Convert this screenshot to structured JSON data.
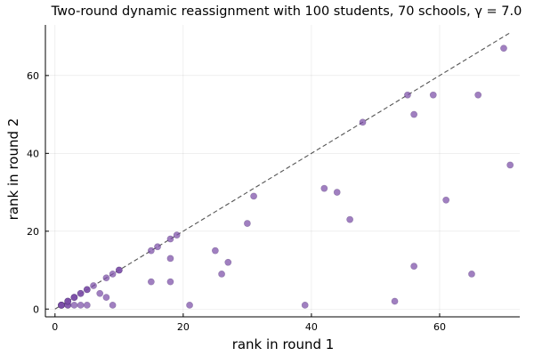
{
  "chart_data": {
    "type": "scatter",
    "title": "Two-round dynamic reassignment with 100 students, 70 schools, γ = 7.0",
    "xlabel": "rank in round 1",
    "ylabel": "rank in round 2",
    "xlim": [
      -1.5,
      72.5
    ],
    "ylim": [
      -2,
      73
    ],
    "xticks": [
      0,
      20,
      40,
      60
    ],
    "yticks": [
      0,
      20,
      40,
      60
    ],
    "xtick_labels": [
      "0",
      "20",
      "40",
      "60"
    ],
    "ytick_labels": [
      "0",
      "20",
      "40",
      "60"
    ],
    "grid": true,
    "legend": "none",
    "reference_line": {
      "style": "dashed",
      "from": [
        0,
        0
      ],
      "to": [
        71,
        71
      ]
    },
    "marker_color": "#7b4ea8",
    "points": [
      {
        "x": 1,
        "y": 1
      },
      {
        "x": 1,
        "y": 1
      },
      {
        "x": 1,
        "y": 1
      },
      {
        "x": 1,
        "y": 1
      },
      {
        "x": 1,
        "y": 1
      },
      {
        "x": 2,
        "y": 1
      },
      {
        "x": 2,
        "y": 1
      },
      {
        "x": 2,
        "y": 2
      },
      {
        "x": 2,
        "y": 2
      },
      {
        "x": 2,
        "y": 2
      },
      {
        "x": 3,
        "y": 1
      },
      {
        "x": 3,
        "y": 3
      },
      {
        "x": 3,
        "y": 3
      },
      {
        "x": 3,
        "y": 3
      },
      {
        "x": 4,
        "y": 1
      },
      {
        "x": 4,
        "y": 4
      },
      {
        "x": 4,
        "y": 4
      },
      {
        "x": 5,
        "y": 1
      },
      {
        "x": 5,
        "y": 5
      },
      {
        "x": 5,
        "y": 5
      },
      {
        "x": 6,
        "y": 6
      },
      {
        "x": 7,
        "y": 4
      },
      {
        "x": 8,
        "y": 3
      },
      {
        "x": 8,
        "y": 8
      },
      {
        "x": 9,
        "y": 1
      },
      {
        "x": 9,
        "y": 9
      },
      {
        "x": 10,
        "y": 10
      },
      {
        "x": 10,
        "y": 10
      },
      {
        "x": 15,
        "y": 7
      },
      {
        "x": 15,
        "y": 15
      },
      {
        "x": 16,
        "y": 16
      },
      {
        "x": 18,
        "y": 7
      },
      {
        "x": 18,
        "y": 13
      },
      {
        "x": 18,
        "y": 18
      },
      {
        "x": 19,
        "y": 19
      },
      {
        "x": 21,
        "y": 1
      },
      {
        "x": 25,
        "y": 15
      },
      {
        "x": 26,
        "y": 9
      },
      {
        "x": 27,
        "y": 12
      },
      {
        "x": 30,
        "y": 22
      },
      {
        "x": 31,
        "y": 29
      },
      {
        "x": 39,
        "y": 1
      },
      {
        "x": 42,
        "y": 31
      },
      {
        "x": 44,
        "y": 30
      },
      {
        "x": 46,
        "y": 23
      },
      {
        "x": 48,
        "y": 48
      },
      {
        "x": 53,
        "y": 2
      },
      {
        "x": 55,
        "y": 55
      },
      {
        "x": 56,
        "y": 50
      },
      {
        "x": 56,
        "y": 11
      },
      {
        "x": 59,
        "y": 55
      },
      {
        "x": 61,
        "y": 28
      },
      {
        "x": 65,
        "y": 9
      },
      {
        "x": 66,
        "y": 55
      },
      {
        "x": 70,
        "y": 67
      },
      {
        "x": 71,
        "y": 37
      }
    ]
  }
}
